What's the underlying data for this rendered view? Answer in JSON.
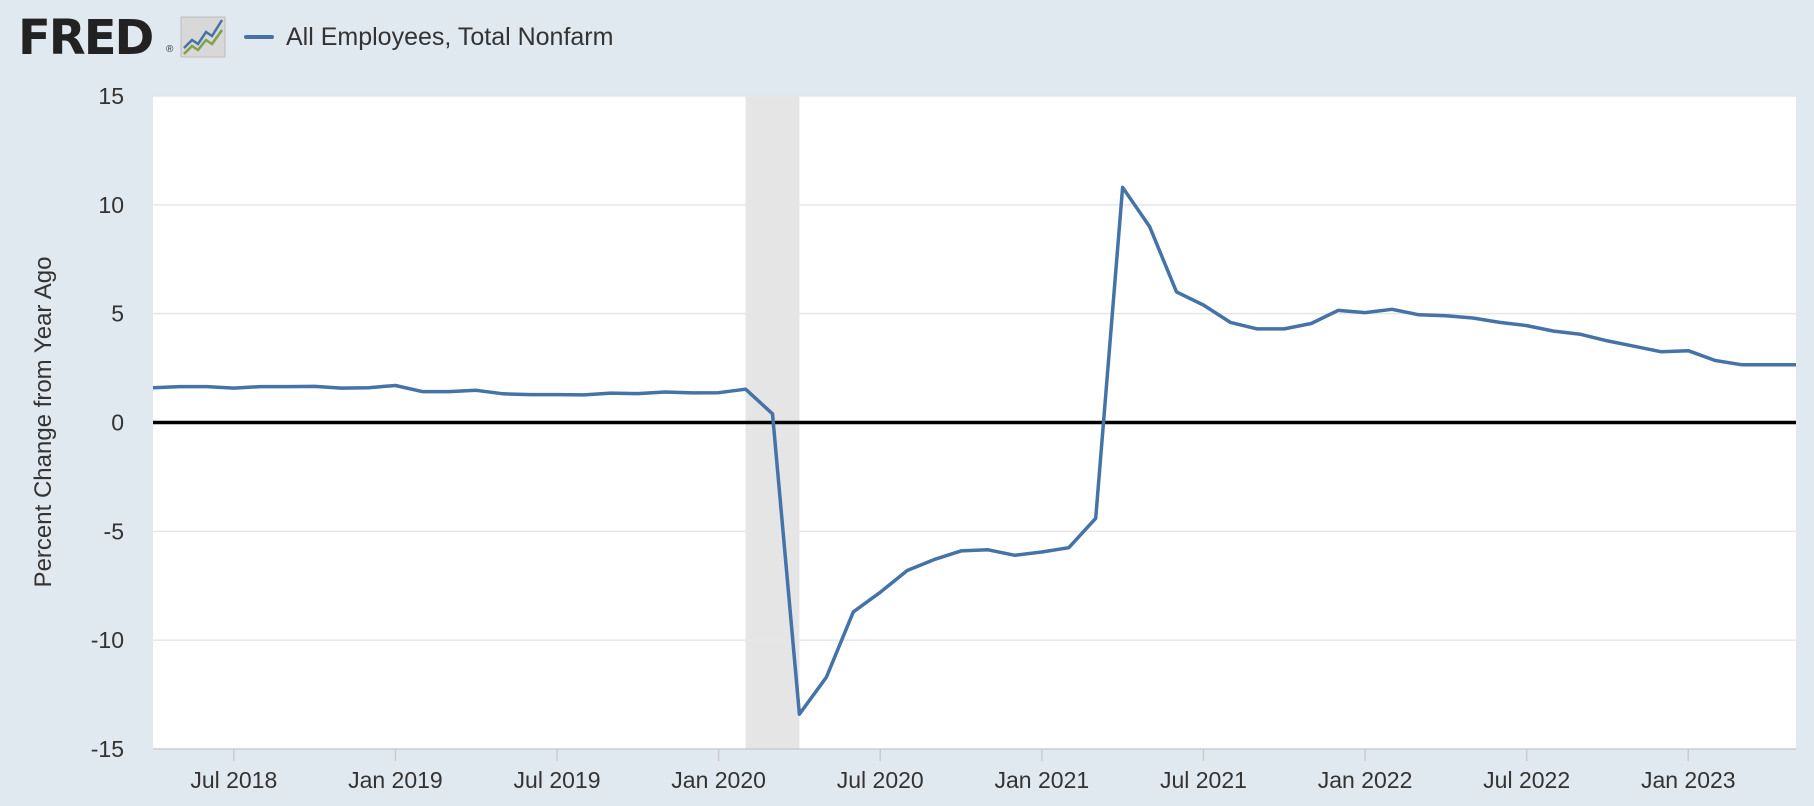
{
  "header": {
    "logo_text": "FRED",
    "logo_reg": "®",
    "logo_icon": "fred-line-chart-icon"
  },
  "colors": {
    "series": "#4572a7",
    "recession": "#e5e5e5",
    "grid": "#e6e6e6",
    "zero_line": "#000000",
    "background": "#e1e9f0",
    "plot_background": "#ffffff"
  },
  "chart_data": {
    "type": "line",
    "title": "",
    "xlabel": "",
    "ylabel": "Percent Change from Year Ago",
    "ylim": [
      -15,
      15
    ],
    "yticks": [
      -15,
      -10,
      -5,
      0,
      5,
      10,
      15
    ],
    "xlim": [
      "2018-04",
      "2023-05"
    ],
    "xticks": [
      {
        "date": "2018-07",
        "label": "Jul 2018"
      },
      {
        "date": "2019-01",
        "label": "Jan 2019"
      },
      {
        "date": "2019-07",
        "label": "Jul 2019"
      },
      {
        "date": "2020-01",
        "label": "Jan 2020"
      },
      {
        "date": "2020-07",
        "label": "Jul 2020"
      },
      {
        "date": "2021-01",
        "label": "Jan 2021"
      },
      {
        "date": "2021-07",
        "label": "Jul 2021"
      },
      {
        "date": "2022-01",
        "label": "Jan 2022"
      },
      {
        "date": "2022-07",
        "label": "Jul 2022"
      },
      {
        "date": "2023-01",
        "label": "Jan 2023"
      }
    ],
    "grid": true,
    "legend_position": "top-left",
    "recession_shading": [
      {
        "start": "2020-02",
        "end": "2020-04"
      }
    ],
    "zero_line": true,
    "series": [
      {
        "name": "All Employees, Total Nonfarm",
        "color": "#4572a7",
        "x": [
          "2018-04",
          "2018-05",
          "2018-06",
          "2018-07",
          "2018-08",
          "2018-09",
          "2018-10",
          "2018-11",
          "2018-12",
          "2019-01",
          "2019-02",
          "2019-03",
          "2019-04",
          "2019-05",
          "2019-06",
          "2019-07",
          "2019-08",
          "2019-09",
          "2019-10",
          "2019-11",
          "2019-12",
          "2020-01",
          "2020-02",
          "2020-03",
          "2020-04",
          "2020-05",
          "2020-06",
          "2020-07",
          "2020-08",
          "2020-09",
          "2020-10",
          "2020-11",
          "2020-12",
          "2021-01",
          "2021-02",
          "2021-03",
          "2021-04",
          "2021-05",
          "2021-06",
          "2021-07",
          "2021-08",
          "2021-09",
          "2021-10",
          "2021-11",
          "2021-12",
          "2022-01",
          "2022-02",
          "2022-03",
          "2022-04",
          "2022-05",
          "2022-06",
          "2022-07",
          "2022-08",
          "2022-09",
          "2022-10",
          "2022-11",
          "2022-12",
          "2023-01",
          "2023-02",
          "2023-03",
          "2023-04",
          "2023-05"
        ],
        "values": [
          1.6,
          1.65,
          1.65,
          1.58,
          1.65,
          1.65,
          1.66,
          1.58,
          1.6,
          1.7,
          1.42,
          1.42,
          1.48,
          1.32,
          1.28,
          1.28,
          1.27,
          1.35,
          1.33,
          1.4,
          1.36,
          1.37,
          1.53,
          0.4,
          -13.4,
          -11.7,
          -8.7,
          -7.8,
          -6.8,
          -6.3,
          -5.9,
          -5.85,
          -6.1,
          -5.95,
          -5.75,
          -4.4,
          10.8,
          9.0,
          6.0,
          5.4,
          4.6,
          4.3,
          4.3,
          4.55,
          5.15,
          5.05,
          5.2,
          4.95,
          4.9,
          4.8,
          4.6,
          4.45,
          4.2,
          4.05,
          3.75,
          3.5,
          3.25,
          3.3,
          2.85,
          2.65,
          2.65,
          2.65
        ]
      }
    ]
  }
}
